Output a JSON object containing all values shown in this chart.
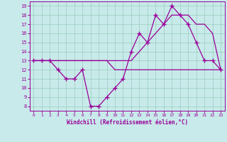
{
  "xlabel": "Windchill (Refroidissement éolien,°C)",
  "bg_color": "#c8eaea",
  "grid_color": "#99ccbb",
  "line_color": "#990099",
  "xlim": [
    -0.5,
    23.5
  ],
  "ylim": [
    7.5,
    19.5
  ],
  "xticks": [
    0,
    1,
    2,
    3,
    4,
    5,
    6,
    7,
    8,
    9,
    10,
    11,
    12,
    13,
    14,
    15,
    16,
    17,
    18,
    19,
    20,
    21,
    22,
    23
  ],
  "yticks": [
    8,
    9,
    10,
    11,
    12,
    13,
    14,
    15,
    16,
    17,
    18,
    19
  ],
  "line1_x": [
    0,
    1,
    2,
    3,
    4,
    5,
    6,
    7,
    8,
    9,
    10,
    11,
    12,
    13,
    14,
    15,
    16,
    17,
    18,
    19,
    20,
    21,
    22,
    23
  ],
  "line1_y": [
    13,
    13,
    13,
    12,
    11,
    11,
    12,
    8,
    8,
    9,
    10,
    11,
    14,
    16,
    15,
    18,
    17,
    19,
    18,
    17,
    15,
    13,
    13,
    12
  ],
  "line2_x": [
    0,
    1,
    2,
    3,
    4,
    5,
    6,
    7,
    8,
    9,
    10,
    11,
    12,
    13,
    14,
    15,
    16,
    17,
    18,
    19,
    20,
    21,
    22,
    23
  ],
  "line2_y": [
    13,
    13,
    13,
    13,
    13,
    13,
    13,
    13,
    13,
    13,
    12,
    12,
    12,
    12,
    12,
    12,
    12,
    12,
    12,
    12,
    12,
    12,
    12,
    12
  ],
  "line3_x": [
    0,
    1,
    2,
    3,
    4,
    5,
    6,
    7,
    8,
    9,
    10,
    11,
    12,
    13,
    14,
    15,
    16,
    17,
    18,
    19,
    20,
    21,
    22,
    23
  ],
  "line3_y": [
    13,
    13,
    13,
    13,
    13,
    13,
    13,
    13,
    13,
    13,
    13,
    13,
    13,
    14,
    15,
    16,
    17,
    18,
    18,
    18,
    17,
    17,
    16,
    12
  ]
}
